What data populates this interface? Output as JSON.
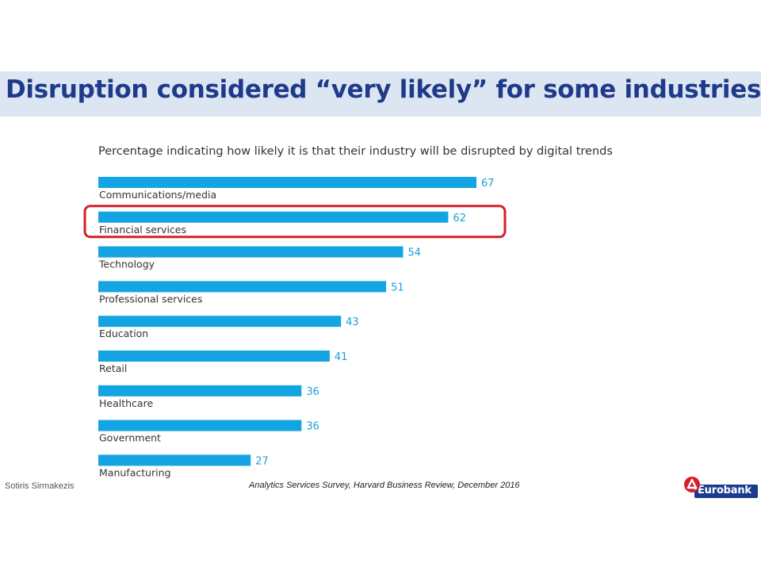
{
  "slide": {
    "title": "Disruption considered “very likely” for some industries",
    "author": "Sotiris Sirmakezis",
    "source": "Analytics Services Survey, Harvard Business Review, December 2016",
    "logo_text": "Eurobank"
  },
  "colors": {
    "bar": "#14a3e3",
    "value_label": "#1aa0d8",
    "highlight": "#d81e2a",
    "title": "#1f3a8a",
    "title_band": "#dce6f2"
  },
  "chart_data": {
    "type": "bar",
    "orientation": "horizontal",
    "title": "Percentage indicating how likely it is that their industry will be disrupted by digital trends",
    "categories": [
      "Communications/media",
      "Financial services",
      "Technology",
      "Professional services",
      "Education",
      "Retail",
      "Healthcare",
      "Government",
      "Manufacturing"
    ],
    "values": [
      67,
      62,
      54,
      51,
      43,
      41,
      36,
      36,
      27
    ],
    "highlighted_category": "Financial services",
    "xlim": [
      0,
      100
    ],
    "grid": false,
    "legend": "none"
  }
}
